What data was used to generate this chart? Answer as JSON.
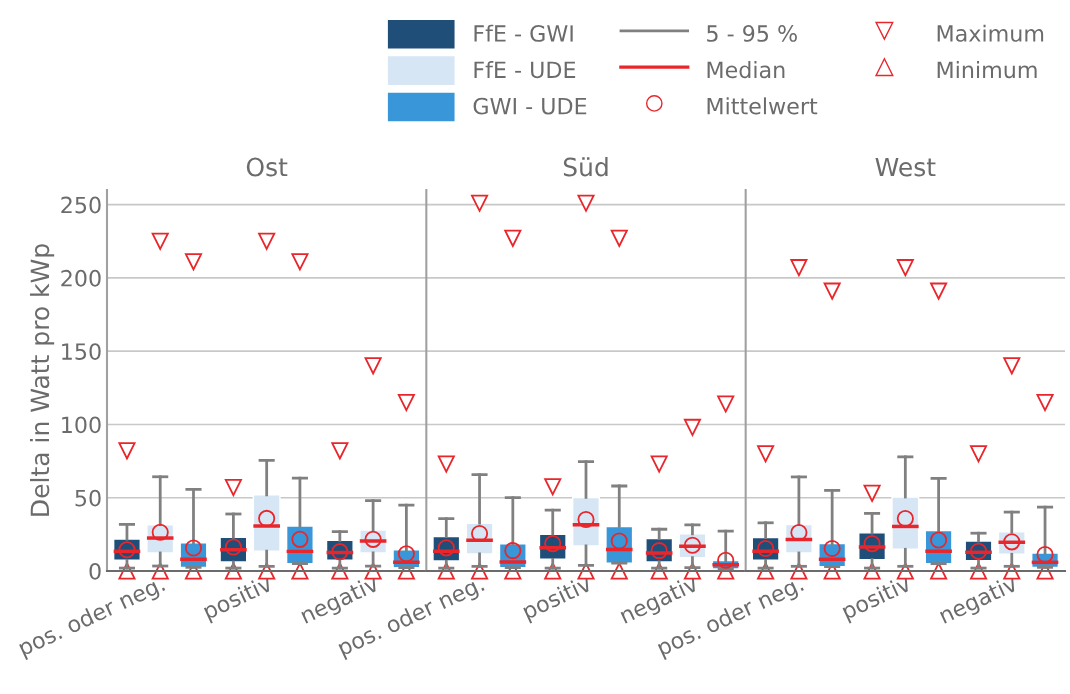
{
  "chart_data": [
    {
      "type": "box",
      "title": "Ost",
      "ylabel": "Delta in Watt pro kWp",
      "categories": [
        "pos. oder neg.",
        "positiv",
        "negativ"
      ],
      "ylim": [
        0,
        260
      ],
      "yticks": [
        0,
        50,
        100,
        150,
        200,
        250
      ],
      "grid": "y",
      "legend": "top",
      "annotations": [
        "5 - 95 %",
        "Median",
        "Mittelwert",
        "Maximum",
        "Minimum"
      ],
      "series": [
        {
          "name": "FfE - GWI",
          "color": "#1f4e79",
          "boxes": [
            {
              "low": 2,
              "q1": 7.3,
              "median": 13.4,
              "q3": 21.8,
              "high": 31.8,
              "mean": 14.5,
              "outliers": [
                0,
                82
              ]
            },
            {
              "low": 2,
              "q1": 6.1,
              "median": 14.5,
              "q3": 23,
              "high": 38.9,
              "mean": 16.4,
              "outliers": [
                0,
                57
              ]
            },
            {
              "low": 2,
              "q1": 7.3,
              "median": 12.7,
              "q3": 20.9,
              "high": 26.8,
              "mean": 13.2,
              "outliers": [
                0,
                82
              ]
            }
          ]
        },
        {
          "name": "FfE - UDE",
          "color": "#d6e6f5",
          "boxes": [
            {
              "low": 3.4,
              "q1": 12.3,
              "median": 22.5,
              "q3": 31.6,
              "high": 64.3,
              "mean": 26.4,
              "outliers": [
                0,
                225
              ]
            },
            {
              "low": 3.2,
              "q1": 13.6,
              "median": 30.7,
              "q3": 52,
              "high": 75.5,
              "mean": 35.9,
              "outliers": [
                0,
                225
              ]
            },
            {
              "low": 3.4,
              "q1": 12.3,
              "median": 20.5,
              "q3": 28,
              "high": 48,
              "mean": 21.6,
              "outliers": [
                0,
                140
              ]
            }
          ]
        },
        {
          "name": "GWI - UDE",
          "color": "#3996d8",
          "boxes": [
            {
              "low": 2.5,
              "q1": 2.5,
              "median": 8,
              "q3": 19.3,
              "high": 55.7,
              "mean": 15.7,
              "outliers": [
                0,
                211
              ]
            },
            {
              "low": 5,
              "q1": 5,
              "median": 13.4,
              "q3": 30.7,
              "high": 63.4,
              "mean": 21.6,
              "outliers": [
                0,
                211
              ]
            },
            {
              "low": 2.3,
              "q1": 2.3,
              "median": 5.9,
              "q3": 14.5,
              "high": 45,
              "mean": 11.8,
              "outliers": [
                0,
                115
              ]
            }
          ]
        }
      ]
    },
    {
      "type": "box",
      "title": "Süd",
      "categories": [
        "pos. oder neg.",
        "positiv",
        "negativ"
      ],
      "ylim": [
        0,
        260
      ],
      "yticks": [
        0,
        50,
        100,
        150,
        200,
        250
      ],
      "grid": "y",
      "tick_labels": "x",
      "series": [
        {
          "color": "#1f4e79",
          "boxes": [
            {
              "low": 2,
              "q1": 6.8,
              "median": 13.5,
              "q3": 23.5,
              "high": 35.8,
              "mean": 15.8,
              "outliers": [
                0,
                73
              ]
            },
            {
              "low": 2,
              "q1": 8,
              "median": 15.8,
              "q3": 25.1,
              "high": 41.6,
              "mean": 18.7,
              "outliers": [
                0,
                57.5
              ]
            },
            {
              "low": 2,
              "q1": 6.2,
              "median": 12.3,
              "q3": 22.1,
              "high": 28.5,
              "mean": 13.9,
              "outliers": [
                0,
                73
              ]
            }
          ]
        },
        {
          "color": "#d6e6f5",
          "boxes": [
            {
              "low": 3.2,
              "q1": 11.6,
              "median": 21,
              "q3": 32.6,
              "high": 65.8,
              "mean": 25.6,
              "outliers": [
                0,
                251
              ]
            },
            {
              "low": 3.9,
              "q1": 17.1,
              "median": 31.5,
              "q3": 50.2,
              "high": 74.7,
              "mean": 35.2,
              "outliers": [
                0,
                251
              ]
            },
            {
              "low": 2.3,
              "q1": 9.1,
              "median": 16.9,
              "q3": 25.3,
              "high": 31.5,
              "mean": 17.6,
              "outliers": [
                0,
                98
              ]
            }
          ]
        },
        {
          "color": "#3996d8",
          "boxes": [
            {
              "low": 2.3,
              "q1": 2.3,
              "median": 6.2,
              "q3": 18.5,
              "high": 50,
              "mean": 13.9,
              "outliers": [
                0,
                227
              ]
            },
            {
              "low": 5.3,
              "q1": 5.3,
              "median": 14.6,
              "q3": 30.4,
              "high": 58,
              "mean": 20.5,
              "outliers": [
                0,
                227
              ]
            },
            {
              "low": 1.4,
              "q1": 1.4,
              "median": 4.3,
              "q3": 7.1,
              "high": 27.2,
              "mean": 7.3,
              "outliers": [
                0,
                114
              ]
            }
          ]
        }
      ]
    },
    {
      "type": "box",
      "title": "West",
      "categories": [
        "pos. oder neg.",
        "positiv",
        "negativ"
      ],
      "ylim": [
        0,
        260
      ],
      "yticks": [
        0,
        50,
        100,
        150,
        200,
        250
      ],
      "grid": "y",
      "tick_labels": "x",
      "series": [
        {
          "color": "#1f4e79",
          "boxes": [
            {
              "low": 2,
              "q1": 7.3,
              "median": 13.5,
              "q3": 22.8,
              "high": 32.9,
              "mean": 15.3,
              "outliers": [
                0,
                80
              ]
            },
            {
              "low": 2,
              "q1": 7.8,
              "median": 16.4,
              "q3": 26,
              "high": 39.3,
              "mean": 18.7,
              "outliers": [
                0,
                53
              ]
            },
            {
              "low": 2,
              "q1": 7.1,
              "median": 12.8,
              "q3": 20.5,
              "high": 25.8,
              "mean": 13.5,
              "outliers": [
                0,
                80
              ]
            }
          ]
        },
        {
          "color": "#d6e6f5",
          "boxes": [
            {
              "low": 3.2,
              "q1": 12.3,
              "median": 21.5,
              "q3": 31.7,
              "high": 64.2,
              "mean": 26.3,
              "outliers": [
                0,
                207
              ]
            },
            {
              "low": 3.2,
              "q1": 14.8,
              "median": 30.4,
              "q3": 50.5,
              "high": 77.9,
              "mean": 35.8,
              "outliers": [
                0,
                207
              ]
            },
            {
              "low": 3.2,
              "q1": 11.4,
              "median": 19.6,
              "q3": 26.7,
              "high": 40.2,
              "mean": 19.9,
              "outliers": [
                0,
                140
              ]
            }
          ]
        },
        {
          "color": "#3996d8",
          "boxes": [
            {
              "low": 3,
              "q1": 3,
              "median": 8,
              "q3": 18.7,
              "high": 55,
              "mean": 15.3,
              "outliers": [
                0,
                191
              ]
            },
            {
              "low": 5,
              "q1": 5,
              "median": 13.5,
              "q3": 27.6,
              "high": 63.2,
              "mean": 21.2,
              "outliers": [
                0,
                191
              ]
            },
            {
              "low": 2.5,
              "q1": 2.5,
              "median": 5.9,
              "q3": 12.3,
              "high": 43.6,
              "mean": 11.2,
              "outliers": [
                0,
                115
              ]
            }
          ]
        }
      ]
    }
  ]
}
